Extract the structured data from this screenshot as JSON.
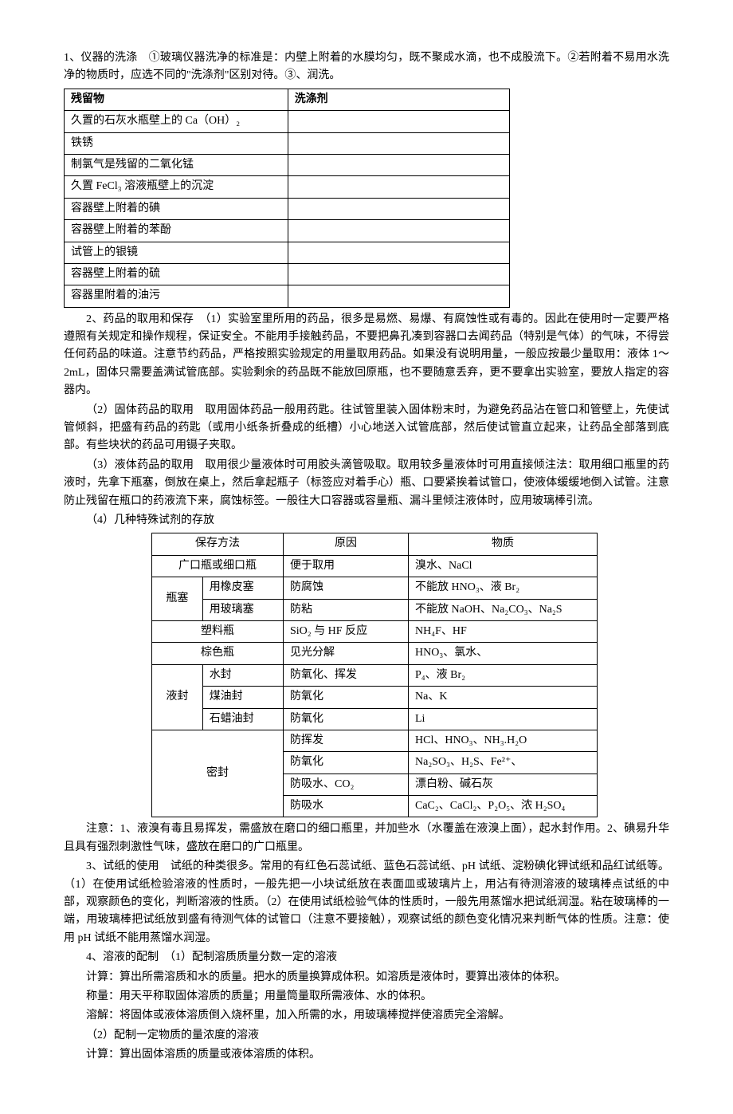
{
  "p1": "1、仪器的洗涤　①玻璃仪器洗净的标准是：内壁上附着的水膜均匀，既不聚成水滴，也不成股流下。②若附着不易用水洗净的物质时，应选不同的\"洗涤剂\"区别对待。③、润洗。",
  "t1": {
    "headers": [
      "残留物",
      "洗涤剂"
    ],
    "rows": [
      [
        "久置的石灰水瓶壁上的 Ca（OH）₂",
        ""
      ],
      [
        "铁锈",
        ""
      ],
      [
        "制氯气是残留的二氧化锰",
        ""
      ],
      [
        "久置 FeCl₃ 溶液瓶壁上的沉淀",
        ""
      ],
      [
        "容器壁上附着的碘",
        ""
      ],
      [
        "容器壁上附着的苯酚",
        ""
      ],
      [
        "试管上的银镜",
        ""
      ],
      [
        "容器壁上附着的硫",
        ""
      ],
      [
        "容器里附着的油污",
        ""
      ]
    ]
  },
  "p2": "2、药品的取用和保存　（1）实验室里所用的药品，很多是易燃、易爆、有腐蚀性或有毒的。因此在使用时一定要严格遵照有关规定和操作规程，保证安全。不能用手接触药品，不要把鼻孔凑到容器口去闻药品（特别是气体）的气味，不得尝任何药品的味道。注意节约药品，严格按照实验规定的用量取用药品。如果没有说明用量，一般应按最少量取用：液体 1～2mL，固体只需要盖满试管底部。实验剩余的药品既不能放回原瓶，也不要随意丢弃，更不要拿出实验室，要放人指定的容器内。",
  "p3": "（2）固体药品的取用　取用固体药品一般用药匙。往试管里装入固体粉末时，为避免药品沾在管口和管壁上，先使试管倾斜，把盛有药品的药匙（或用小纸条折叠成的纸槽）小心地送入试管底部，然后使试管直立起来，让药品全部落到底部。有些块状的药品可用镊子夹取。",
  "p4": "（3）液体药品的取用　取用很少量液体时可用胶头滴管吸取。取用较多量液体时可用直接倾注法：取用细口瓶里的药液时，先拿下瓶塞，倒放在桌上，然后拿起瓶子（标签应对着手心）瓶、口要紧挨着试管口，使液体缓缓地倒入试管。注意防止残留在瓶口的药液流下来，腐蚀标签。一般往大口容器或容量瓶、漏斗里倾注液体时，应用玻璃棒引流。",
  "p5": "（4）几种特殊试剂的存放",
  "t2": {
    "headers": [
      "保存方法",
      "原因",
      "物质"
    ],
    "col1_widths": [
      80,
      80,
      130,
      200
    ],
    "rows": [
      {
        "c1": "广口瓶或细口瓶",
        "span1": 2,
        "c3": "便于取用",
        "c4": "溴水、NaCl"
      },
      {
        "c1": "瓶塞",
        "rowspan1": 2,
        "c2": "用橡皮塞",
        "c3": "防腐蚀",
        "c4": "不能放 HNO₃、液 Br₂"
      },
      {
        "c2": "用玻璃塞",
        "c3": "防粘",
        "c4": "不能放 NaOH、Na₂CO₃、Na₂S"
      },
      {
        "c1": "塑料瓶",
        "span1": 2,
        "c3": "SiO₂ 与 HF 反应",
        "c4": "NH₄F、HF"
      },
      {
        "c1": "棕色瓶",
        "span1": 2,
        "c3": "见光分解",
        "c4": "HNO₃、氯水、"
      },
      {
        "c1": "液封",
        "rowspan1": 3,
        "c2": "水封",
        "c3": "防氧化、挥发",
        "c4": "P₄、液 Br₂"
      },
      {
        "c2": "煤油封",
        "c3": "防氧化",
        "c4": "Na、K"
      },
      {
        "c2": "石蜡油封",
        "c3": "防氧化",
        "c4": "Li"
      },
      {
        "c1": "密封",
        "span1": 2,
        "rowspan1": 4,
        "c3": "防挥发",
        "c4": "HCl、HNO₃、NH₃.H₂O"
      },
      {
        "c3": "防氧化",
        "c4": "Na₂SO₃、H₂S、Fe²⁺、"
      },
      {
        "c3": "防吸水、CO₂",
        "c4": "漂白粉、碱石灰"
      },
      {
        "c3": "防吸水",
        "c4": "CaC₂、CaCl₂、P₂O₅、浓 H₂SO₄"
      }
    ]
  },
  "p6": "注意：1、液溴有毒且易挥发，需盛放在磨口的细口瓶里，并加些水（水覆盖在液溴上面），起水封作用。2、碘易升华且具有强烈刺激性气味，盛放在磨口的广口瓶里。",
  "p7": "3、试纸的使用　试纸的种类很多。常用的有红色石蕊试纸、蓝色石蕊试纸、pH 试纸、淀粉碘化钾试纸和品红试纸等。（1）在使用试纸检验溶液的性质时，一般先把一小块试纸放在表面皿或玻璃片上，用沾有待测溶液的玻璃棒点试纸的中部，观察颜色的变化，判断溶液的性质。（2）在使用试纸检验气体的性质时，一般先用蒸馏水把试纸润湿。粘在玻璃棒的一端，用玻璃棒把试纸放到盛有待测气体的试管口（注意不要接触），观察试纸的颜色变化情况来判断气体的性质。注意：使用 pH 试纸不能用蒸馏水润湿。",
  "p8": "4、溶液的配制　（1）配制溶质质量分数一定的溶液",
  "p9": "计算：算出所需溶质和水的质量。把水的质量换算成体积。如溶质是液体时，要算出液体的体积。",
  "p10": "称量：用天平称取固体溶质的质量；用量筒量取所需液体、水的体积。",
  "p11": "溶解：将固体或液体溶质倒入烧杯里，加入所需的水，用玻璃棒搅拌使溶质完全溶解。",
  "p12": "（2）配制一定物质的量浓度的溶液",
  "p13": "计算：算出固体溶质的质量或液体溶质的体积。"
}
